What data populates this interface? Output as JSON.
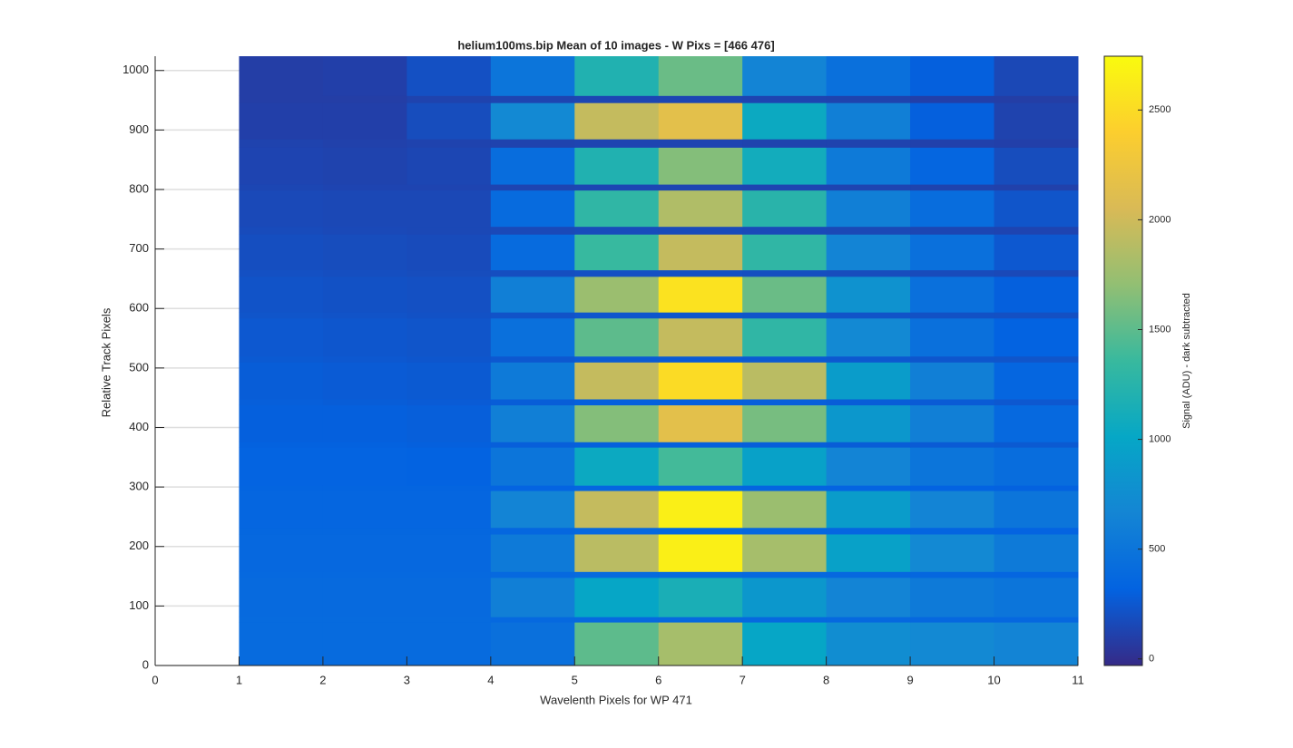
{
  "chart_data": {
    "type": "heatmap",
    "title": "helium100ms.bip  Mean of 10 images - W Pixs = [466  476]",
    "xlabel": "Wavelenth Pixels for WP 471",
    "ylabel": "Relative Track Pixels",
    "colorbar_label": "Signal (ADU) - dark subtracted",
    "colormap": "parula",
    "grid": "y",
    "x_bins": [
      1,
      2,
      3,
      4,
      5,
      6,
      7,
      8,
      9,
      10,
      11
    ],
    "y_bins": [
      0,
      73,
      82,
      148,
      158,
      221,
      232,
      294,
      303,
      367,
      376,
      438,
      448,
      510,
      520,
      584,
      594,
      654,
      665,
      725,
      738,
      799,
      809,
      871,
      885,
      946,
      958,
      1024
    ],
    "z": [
      [
        400,
        400,
        400,
        450,
        1500,
        1800,
        1000,
        750,
        700,
        650
      ],
      [
        400,
        400,
        400,
        380,
        380,
        380,
        380,
        380,
        370,
        370
      ],
      [
        390,
        390,
        390,
        600,
        1000,
        1150,
        850,
        650,
        550,
        500
      ],
      [
        380,
        380,
        380,
        380,
        400,
        400,
        380,
        370,
        360,
        350
      ],
      [
        370,
        370,
        370,
        550,
        1900,
        2650,
        1800,
        950,
        700,
        550
      ],
      [
        360,
        360,
        360,
        360,
        380,
        380,
        360,
        350,
        340,
        330
      ],
      [
        350,
        350,
        350,
        650,
        1950,
        2650,
        1750,
        900,
        650,
        500
      ],
      [
        340,
        340,
        340,
        330,
        350,
        350,
        340,
        330,
        320,
        310
      ],
      [
        330,
        330,
        320,
        500,
        1050,
        1400,
        950,
        650,
        500,
        420
      ],
      [
        310,
        310,
        300,
        290,
        300,
        300,
        290,
        280,
        270,
        260
      ],
      [
        300,
        300,
        290,
        600,
        1650,
        2150,
        1600,
        850,
        600,
        380
      ],
      [
        290,
        280,
        270,
        280,
        300,
        300,
        290,
        280,
        270,
        250
      ],
      [
        280,
        270,
        260,
        550,
        1950,
        2500,
        1900,
        900,
        600,
        350
      ],
      [
        260,
        250,
        240,
        250,
        270,
        270,
        260,
        250,
        240,
        230
      ],
      [
        250,
        240,
        230,
        450,
        1500,
        1950,
        1300,
        700,
        450,
        320
      ],
      [
        230,
        220,
        210,
        220,
        240,
        240,
        230,
        220,
        210,
        200
      ],
      [
        220,
        210,
        200,
        600,
        1750,
        2550,
        1550,
        800,
        450,
        300
      ],
      [
        200,
        190,
        180,
        190,
        200,
        200,
        190,
        180,
        170,
        160
      ],
      [
        190,
        180,
        170,
        400,
        1350,
        1950,
        1300,
        650,
        450,
        250
      ],
      [
        170,
        160,
        150,
        160,
        170,
        170,
        160,
        150,
        140,
        130
      ],
      [
        160,
        150,
        150,
        400,
        1300,
        1850,
        1250,
        600,
        420,
        230
      ],
      [
        140,
        130,
        130,
        130,
        140,
        140,
        130,
        130,
        120,
        110
      ],
      [
        130,
        120,
        140,
        420,
        1200,
        1650,
        1100,
        550,
        350,
        180
      ],
      [
        120,
        110,
        120,
        120,
        130,
        130,
        120,
        120,
        110,
        100
      ],
      [
        100,
        100,
        180,
        700,
        1950,
        2150,
        1050,
        600,
        300,
        120
      ],
      [
        90,
        90,
        120,
        130,
        140,
        140,
        130,
        120,
        100,
        90
      ],
      [
        90,
        100,
        200,
        500,
        1200,
        1550,
        650,
        450,
        300,
        150
      ]
    ],
    "xlim": [
      0,
      11
    ],
    "xticks": [
      0,
      1,
      2,
      3,
      4,
      5,
      6,
      7,
      8,
      9,
      10,
      11
    ],
    "ylim": [
      0,
      1024
    ],
    "yticks": [
      0,
      100,
      200,
      300,
      400,
      500,
      600,
      700,
      800,
      900,
      1000
    ],
    "clim": [
      -30,
      2745
    ],
    "cticks": [
      0,
      500,
      1000,
      1500,
      2000,
      2500
    ]
  }
}
